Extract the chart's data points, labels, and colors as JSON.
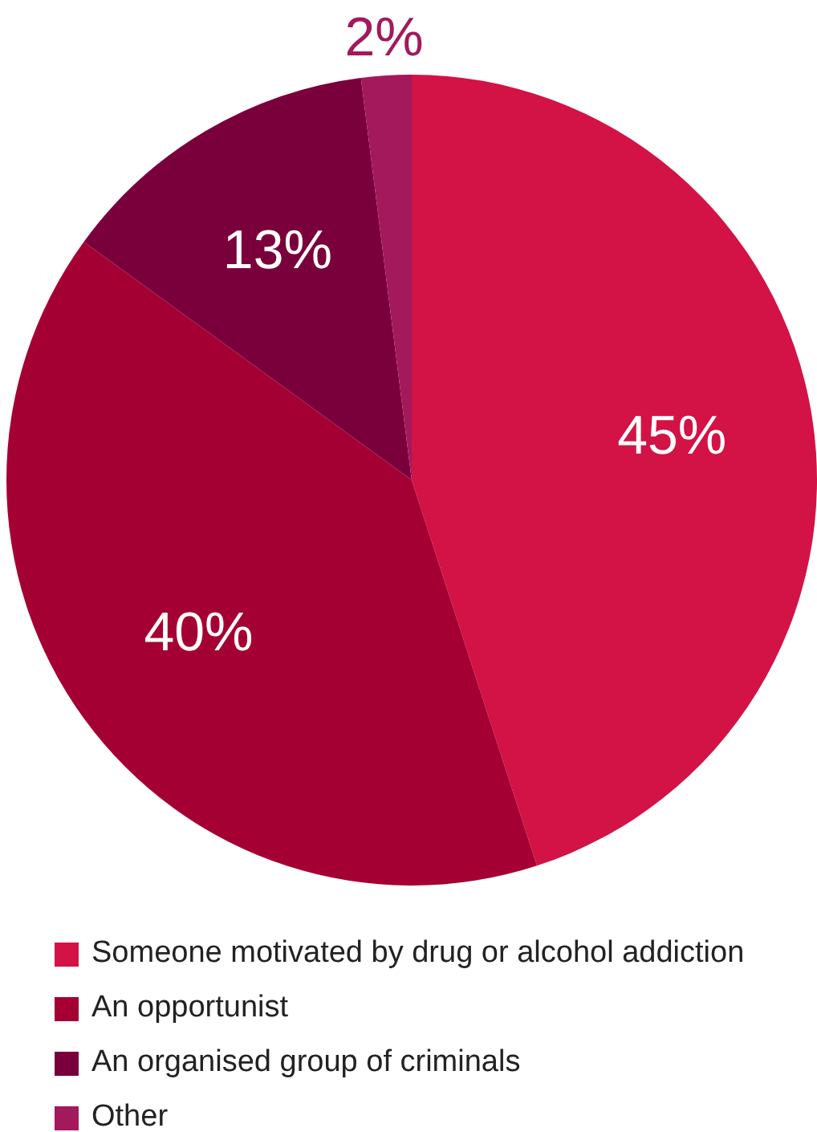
{
  "chart_data": {
    "type": "pie",
    "categories": [
      "Someone motivated by drug or alcohol addiction",
      "An opportunist",
      "An organised group of criminals",
      "Other"
    ],
    "values": [
      45,
      40,
      13,
      2
    ],
    "colors": [
      "#d31245",
      "#a50034",
      "#7a003c",
      "#a3195b"
    ],
    "value_labels": [
      "45%",
      "40%",
      "13%",
      "2%"
    ],
    "legend": "bottom"
  }
}
